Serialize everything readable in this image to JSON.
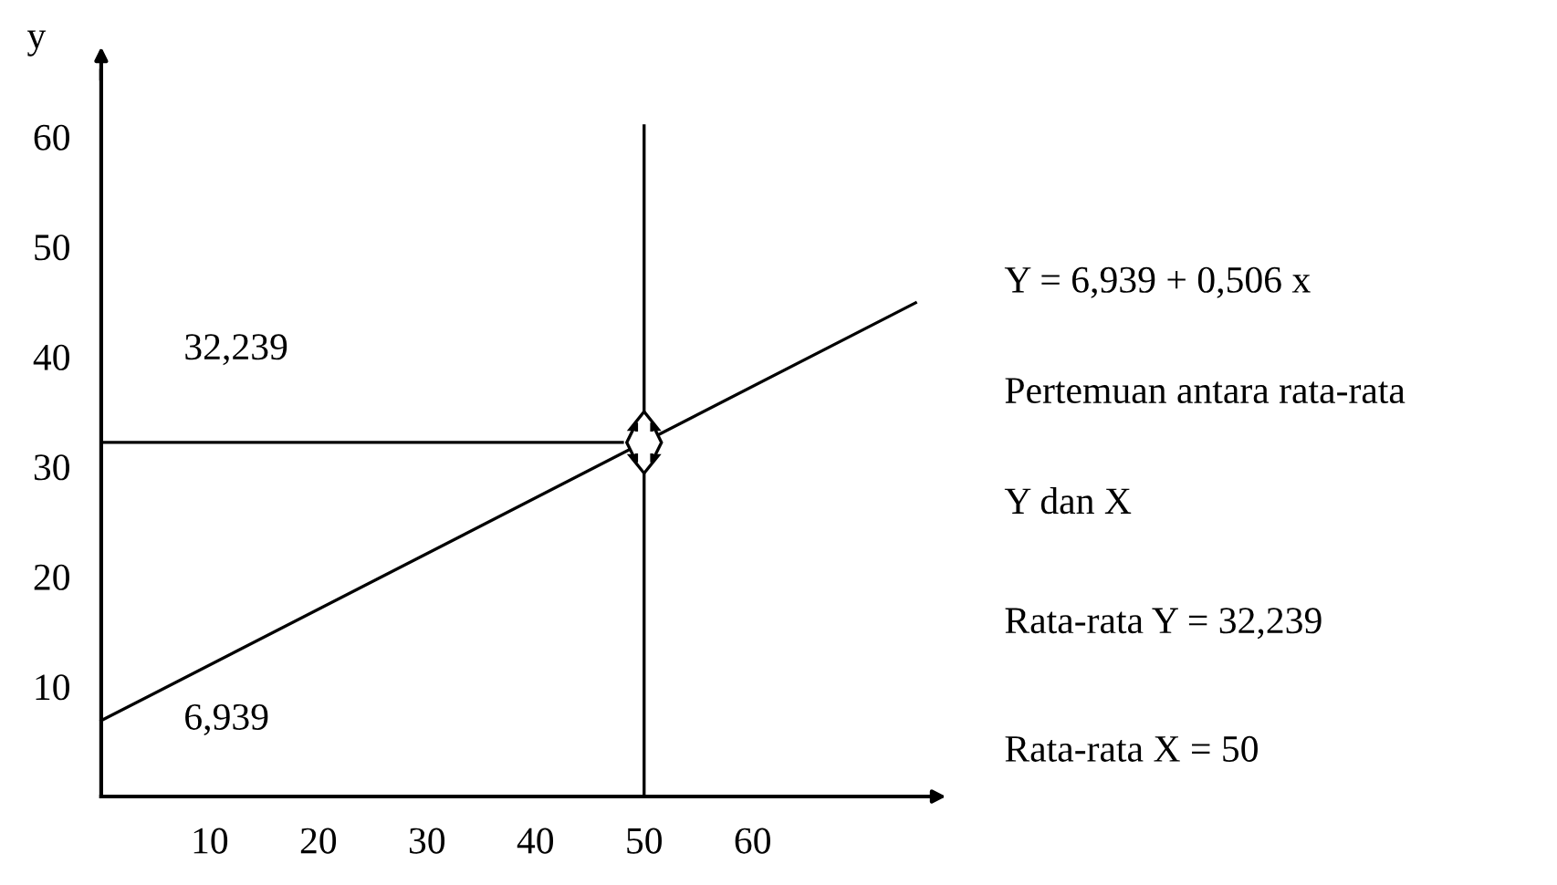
{
  "chart_data": {
    "type": "line",
    "ylabel": "y",
    "xlim": [
      0,
      76
    ],
    "ylim": [
      0,
      66
    ],
    "xticks": [
      10,
      20,
      30,
      40,
      50,
      60
    ],
    "yticks": [
      10,
      20,
      30,
      40,
      50,
      60
    ],
    "series": [
      {
        "color": "#000000",
        "x": [
          0,
          75
        ],
        "values": [
          6.9,
          44.9
        ]
      },
      {
        "color": "#000000",
        "x": [
          0,
          48
        ],
        "values": [
          32.2,
          32.2
        ]
      },
      {
        "color": "#000000",
        "x": [
          50,
          50
        ],
        "values": [
          0,
          61
        ]
      }
    ],
    "annotations": [
      "32,239",
      "6,939",
      "Y = 6,939 + 0,506 x",
      "Pertemuan antara rata-rata",
      "Y dan X",
      "Rata-rata Y = 32,239",
      "Rata-rata X = 50"
    ],
    "grid": false
  }
}
